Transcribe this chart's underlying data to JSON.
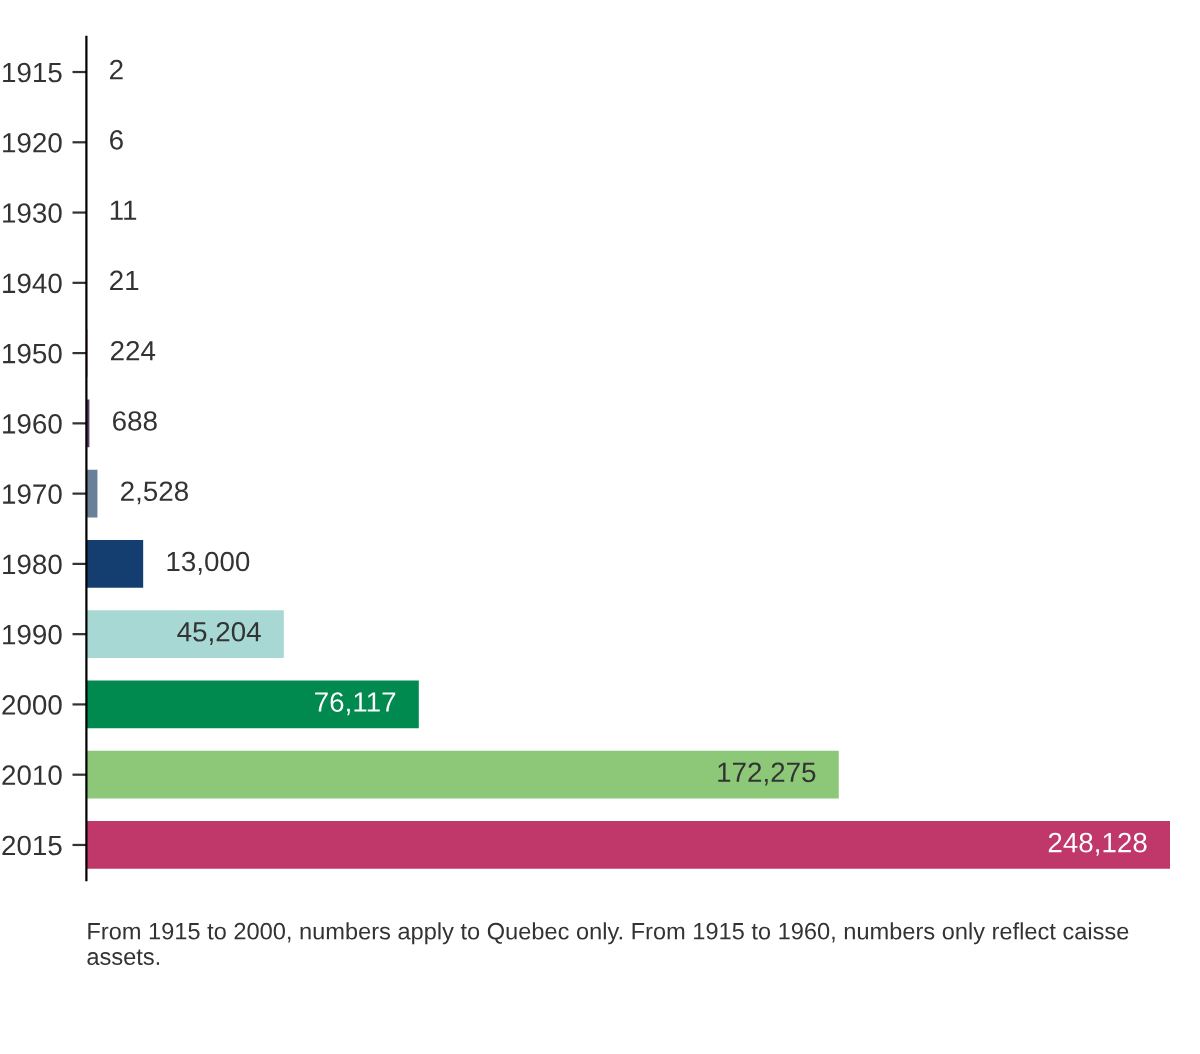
{
  "chart_data": {
    "type": "bar",
    "orientation": "horizontal",
    "categories": [
      "1915",
      "1920",
      "1930",
      "1940",
      "1950",
      "1960",
      "1970",
      "1980",
      "1990",
      "2000",
      "2010",
      "2015"
    ],
    "values": [
      2,
      6,
      11,
      21,
      224,
      688,
      2528,
      13000,
      45204,
      76117,
      172275,
      248128
    ],
    "colors": [
      "#2a8c9c",
      "#5aa64a",
      "#e0e060",
      "#e09050",
      "#c04838",
      "#5e3f6a",
      "#6a8098",
      "#143e70",
      "#a8d8d4",
      "#008a50",
      "#8cc878",
      "#c0386a"
    ],
    "value_labels": [
      "2",
      "6",
      "11",
      "21",
      "224",
      "688",
      "2,528",
      "13,000",
      "45,204",
      "76,117",
      "172,275",
      "248,128"
    ],
    "grid": false,
    "legend": false,
    "annotations": [
      "From 1915 to 2000, numbers apply to Quebec only. From 1915 to 1960, numbers only reflect caisse assets."
    ]
  }
}
